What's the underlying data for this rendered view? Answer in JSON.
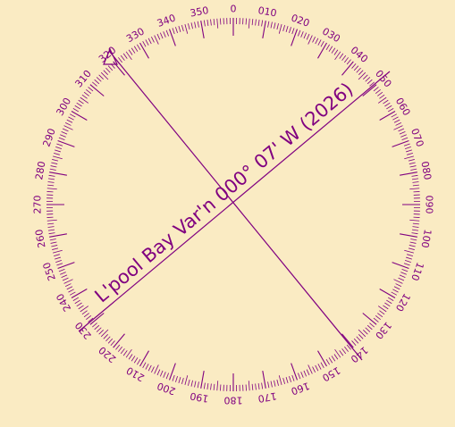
{
  "colors": {
    "background": "#faebc3",
    "ink": "#800080"
  },
  "compass_rose": {
    "variation_label": "L'pool Bay Var'n 000° 07' W (2026)",
    "variation_degrees": 0.1167,
    "variation_direction": "W",
    "variation_year": "2026",
    "zero_bearing_marker": "triangle-icon",
    "bearing_labels": [
      "0",
      "010",
      "020",
      "030",
      "040",
      "050",
      "060",
      "070",
      "080",
      "090",
      "100",
      "110",
      "120",
      "130",
      "140",
      "150",
      "160",
      "170",
      "180",
      "190",
      "200",
      "210",
      "220",
      "230",
      "240",
      "250",
      "260",
      "270",
      "280",
      "290",
      "300",
      "310",
      "320",
      "330",
      "340",
      "350"
    ]
  }
}
